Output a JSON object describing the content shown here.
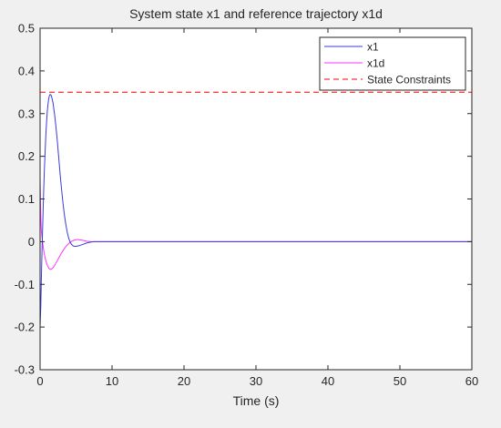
{
  "chart_data": {
    "type": "line",
    "title": "System state x1 and reference trajectory x1d",
    "xlabel": "Time (s)",
    "ylabel": "",
    "xlim": [
      0,
      60
    ],
    "ylim": [
      -0.3,
      0.5
    ],
    "xticks": [
      0,
      10,
      20,
      30,
      40,
      50,
      60
    ],
    "xtick_labels": [
      "0",
      "10",
      "20",
      "30",
      "40",
      "50",
      "60"
    ],
    "yticks": [
      -0.3,
      -0.2,
      -0.1,
      0,
      0.1,
      0.2,
      0.3,
      0.4,
      0.5
    ],
    "ytick_labels": [
      "-0.3",
      "-0.2",
      "-0.1",
      "0",
      "0.1",
      "0.2",
      "0.3",
      "0.4",
      "0.5"
    ],
    "grid": false,
    "legend_position": "top-right",
    "series": [
      {
        "name": "x1",
        "color": "#3a3ae0",
        "dash": "solid",
        "x": [
          0,
          0.1,
          0.2,
          0.3,
          0.4,
          0.5,
          0.6,
          0.7,
          0.8,
          0.9,
          1.0,
          1.1,
          1.2,
          1.3,
          1.4,
          1.5,
          1.6,
          1.8,
          2.0,
          2.2,
          2.4,
          2.6,
          2.8,
          3.0,
          3.2,
          3.4,
          3.6,
          3.8,
          4.0,
          4.2,
          4.4,
          4.6,
          4.8,
          5.0,
          5.5,
          6.0,
          6.5,
          7.0,
          7.5,
          8.0,
          9.0,
          10.0,
          15.0,
          20.0,
          30.0,
          40.0,
          50.0,
          60.0
        ],
        "y": [
          -0.2,
          -0.15,
          -0.07,
          0.0,
          0.06,
          0.12,
          0.17,
          0.21,
          0.25,
          0.28,
          0.305,
          0.322,
          0.335,
          0.342,
          0.345,
          0.344,
          0.34,
          0.325,
          0.3,
          0.27,
          0.235,
          0.195,
          0.155,
          0.12,
          0.088,
          0.06,
          0.038,
          0.02,
          0.007,
          -0.002,
          -0.007,
          -0.01,
          -0.011,
          -0.011,
          -0.009,
          -0.006,
          -0.003,
          -0.001,
          0.0,
          0.0,
          0.0,
          0.0,
          0.0,
          0.0,
          0.0,
          0.0,
          0.0,
          0.0
        ]
      },
      {
        "name": "x1d",
        "color": "#ff33ff",
        "dash": "solid",
        "x": [
          0,
          0.05,
          0.1,
          0.15,
          0.2,
          0.3,
          0.4,
          0.5,
          0.6,
          0.8,
          1.0,
          1.2,
          1.4,
          1.6,
          1.8,
          2.0,
          2.2,
          2.5,
          2.8,
          3.0,
          3.3,
          3.6,
          4.0,
          4.4,
          4.8,
          5.2,
          5.6,
          6.0,
          6.5,
          7.0,
          8.0,
          10.0,
          20.0,
          30.0,
          40.0,
          50.0,
          60.0
        ],
        "y": [
          0.15,
          0.1,
          0.06,
          0.035,
          0.02,
          0.005,
          -0.008,
          -0.02,
          -0.03,
          -0.045,
          -0.055,
          -0.062,
          -0.065,
          -0.064,
          -0.061,
          -0.056,
          -0.05,
          -0.041,
          -0.032,
          -0.026,
          -0.018,
          -0.011,
          -0.004,
          0.001,
          0.004,
          0.005,
          0.004,
          0.003,
          0.001,
          0.0,
          0.0,
          0.0,
          0.0,
          0.0,
          0.0,
          0.0,
          0.0
        ]
      },
      {
        "name": "State Constraints",
        "color": "#ff0000",
        "dash": "dashed",
        "x": [
          0,
          60
        ],
        "y": [
          0.35,
          0.35
        ]
      }
    ]
  }
}
